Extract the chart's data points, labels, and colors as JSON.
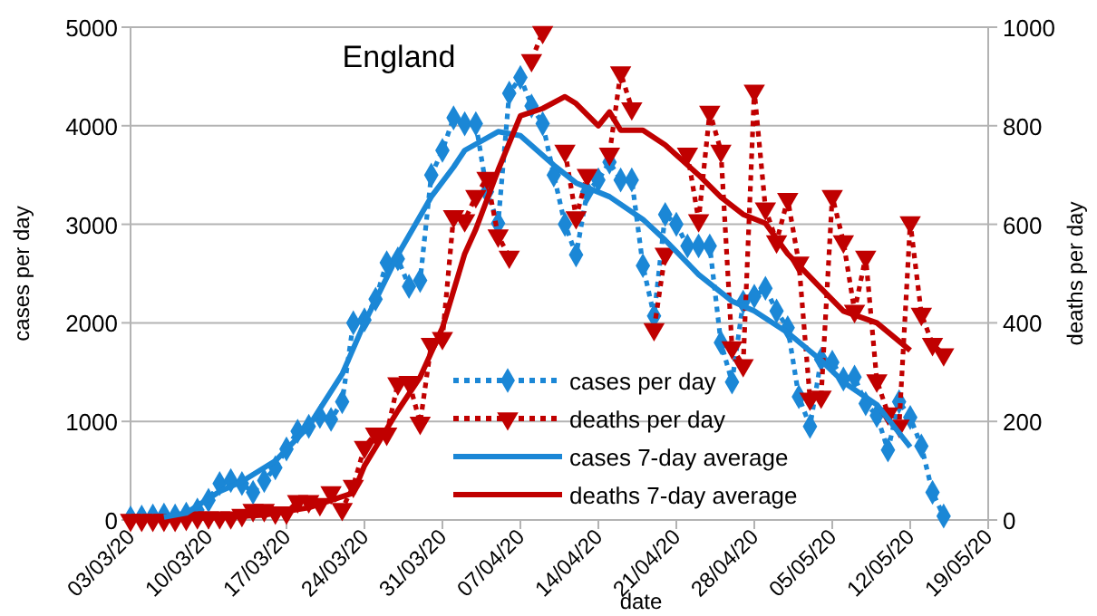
{
  "chart_data": {
    "type": "line",
    "title": "England",
    "xlabel": "date",
    "ylabel": "cases per day",
    "y2label": "deaths per day",
    "x": [
      "--03-03",
      "--03-04",
      "--03-05",
      "--03-06",
      "--03-07",
      "--03-08",
      "--03-09",
      "--03-10",
      "--03-11",
      "--03-12",
      "--03-13",
      "--03-14",
      "--03-15",
      "--03-16",
      "--03-17",
      "--03-18",
      "--03-19",
      "--03-20",
      "--03-21",
      "--03-22",
      "--03-23",
      "--03-24",
      "--03-25",
      "--03-26",
      "--03-27",
      "--03-28",
      "--03-29",
      "--03-30",
      "--03-31",
      "--04-01",
      "--04-02",
      "--04-03",
      "--04-04",
      "--04-05",
      "--04-06",
      "--04-07",
      "--04-08",
      "--04-09",
      "--04-10",
      "--04-11",
      "--04-12",
      "--04-13",
      "--04-14",
      "--04-15",
      "--04-16",
      "--04-17",
      "--04-18",
      "--04-19",
      "--04-20",
      "--04-21",
      "--04-22",
      "--04-23",
      "--04-24",
      "--04-25",
      "--04-26",
      "--04-27",
      "--04-28",
      "--04-29",
      "--04-30",
      "--05-01",
      "--05-02",
      "--05-03",
      "--05-04",
      "--05-05",
      "--05-06",
      "--05-07",
      "--05-08",
      "--05-09",
      "--05-10",
      "--05-11",
      "--05-12",
      "--05-13",
      "--05-14",
      "--05-15"
    ],
    "series": [
      {
        "name": "cases per day",
        "color": "#1b87d6",
        "marker": "diamond",
        "line_style": "dotted",
        "values": [
          20,
          30,
          40,
          50,
          40,
          60,
          100,
          200,
          370,
          400,
          370,
          280,
          400,
          530,
          720,
          900,
          950,
          1050,
          1020,
          1200,
          2000,
          2030,
          2240,
          2610,
          2650,
          2370,
          2430,
          3500,
          3750,
          4080,
          4020,
          4020,
          3330,
          3010,
          4330,
          4490,
          4200,
          4020,
          3500,
          3000,
          2690,
          3330,
          3450,
          3630,
          3450,
          3450,
          2580,
          2070,
          3100,
          3000,
          2780,
          2780,
          2780,
          1800,
          1400,
          2210,
          2270,
          2350,
          2120,
          1950,
          1250,
          950,
          1630,
          1600,
          1430,
          1450,
          1180,
          1060,
          710,
          1200,
          1040,
          750,
          280,
          40
        ]
      },
      {
        "name": "deaths per day",
        "color": "#c00000",
        "marker": "triangle",
        "line_style": "dotted",
        "axis": "y2",
        "values": [
          0,
          0,
          0,
          0,
          0,
          2,
          5,
          5,
          5,
          5,
          10,
          20,
          20,
          15,
          15,
          38,
          38,
          32,
          56,
          22,
          69,
          148,
          175,
          175,
          277,
          280,
          197,
          357,
          369,
          616,
          608,
          657,
          694,
          577,
          534,
          null,
          933,
          990,
          null,
          749,
          614,
          700,
          null,
          743,
          908,
          835,
          null,
          387,
          540,
          null,
          743,
          608,
          828,
          749,
          350,
          314,
          871,
          632,
          565,
          651,
          522,
          246,
          250,
          657,
          565,
          424,
          534,
          283,
          216,
          191,
          604,
          418,
          357,
          336
        ]
      },
      {
        "name": "cases 7-day average",
        "color": "#1b87d6",
        "marker": "none",
        "line_style": "solid",
        "x": [
          "--03-06",
          "--03-08",
          "--03-11",
          "--03-13",
          "--03-16",
          "--03-19",
          "--03-22",
          "--03-24",
          "--03-27",
          "--03-30",
          "--04-01",
          "--04-02",
          "--04-05",
          "--04-07",
          "--04-10",
          "--04-12",
          "--04-15",
          "--04-18",
          "--04-20",
          "--04-23",
          "--04-26",
          "--04-28",
          "--05-01",
          "--05-04",
          "--05-06",
          "--05-09",
          "--05-12"
        ],
        "values": [
          30,
          70,
          290,
          390,
          600,
          950,
          1480,
          2000,
          2690,
          3280,
          3580,
          3750,
          3940,
          3900,
          3600,
          3420,
          3280,
          3050,
          2840,
          2490,
          2220,
          2120,
          1900,
          1620,
          1400,
          1170,
          740
        ]
      },
      {
        "name": "deaths 7-day average",
        "color": "#c00000",
        "marker": "none",
        "line_style": "solid",
        "axis": "y2",
        "x": [
          "--03-09",
          "--03-15",
          "--03-19",
          "--03-23",
          "--03-24",
          "--03-27",
          "--03-29",
          "--03-31",
          "--04-02",
          "--04-03",
          "--04-05",
          "--04-07",
          "--04-09",
          "--04-11",
          "--04-12",
          "--04-14",
          "--04-15",
          "--04-16",
          "--04-18",
          "--04-20",
          "--04-23",
          "--04-25",
          "--04-27",
          "--04-29",
          "--05-01",
          "--05-04",
          "--05-06",
          "--05-09",
          "--05-12"
        ],
        "values": [
          3,
          10,
          25,
          55,
          110,
          222,
          290,
          390,
          540,
          590,
          710,
          820,
          835,
          859,
          845,
          800,
          828,
          791,
          791,
          761,
          700,
          655,
          620,
          602,
          540,
          470,
          424,
          400,
          344
        ]
      }
    ],
    "xlim": [
      "--03-03",
      "--05-19"
    ],
    "xticks": [
      {
        "value": "--03-03",
        "label": "03/03/20"
      },
      {
        "value": "--03-10",
        "label": "10/03/20"
      },
      {
        "value": "--03-17",
        "label": "17/03/20"
      },
      {
        "value": "--03-24",
        "label": "24/03/20"
      },
      {
        "value": "--03-31",
        "label": "31/03/20"
      },
      {
        "value": "--04-07",
        "label": "07/04/20"
      },
      {
        "value": "--04-14",
        "label": "14/04/20"
      },
      {
        "value": "--04-21",
        "label": "21/04/20"
      },
      {
        "value": "--04-28",
        "label": "28/04/20"
      },
      {
        "value": "--05-05",
        "label": "05/05/20"
      },
      {
        "value": "--05-12",
        "label": "12/05/20"
      },
      {
        "value": "--05-19",
        "label": "19/05/20"
      }
    ],
    "ylim": [
      0,
      5000
    ],
    "yticks": [
      0,
      1000,
      2000,
      3000,
      4000,
      5000
    ],
    "y2lim": [
      0,
      1000
    ],
    "y2ticks": [
      0,
      200,
      400,
      600,
      800,
      1000
    ],
    "grid": "y",
    "legend": "bottom"
  }
}
